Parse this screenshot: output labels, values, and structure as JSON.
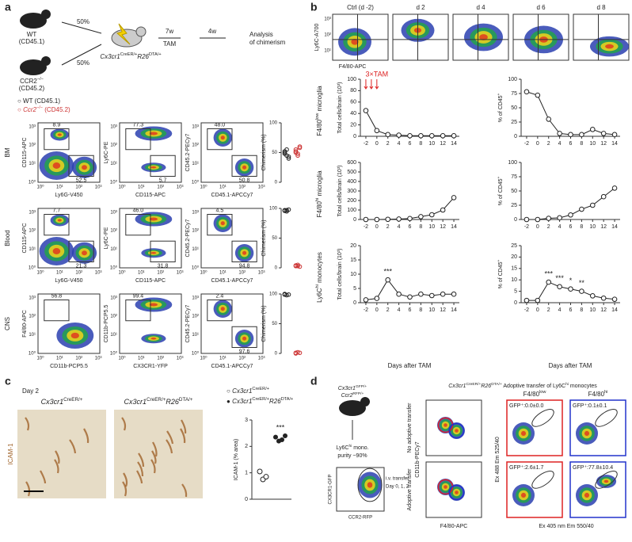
{
  "panel_labels": [
    "a",
    "b",
    "c",
    "d"
  ],
  "a": {
    "mice": [
      [
        {
          "t": "WT"
        }
      ],
      [
        {
          "t": "(CD45.1)"
        }
      ],
      [
        {
          "t": "CCR2"
        },
        {
          "t": "−/−",
          "sup": true
        }
      ],
      [
        {
          "t": "(CD45.2)"
        }
      ]
    ],
    "split": [
      "50%",
      "50%"
    ],
    "steps": [
      "7w",
      "TAM",
      "4w",
      "Analysis",
      "of chimerism"
    ],
    "recipient": [
      {
        "t": "Cx3cr1",
        "i": true
      },
      {
        "t": "CreER/+",
        "sup": true
      },
      {
        "t": "R26",
        "i": true
      },
      {
        "t": "DTA/+",
        "sup": true
      }
    ],
    "legend": [
      [
        {
          "t": "○ WT (CD45.1)"
        }
      ],
      [
        {
          "t": "○ "
        },
        {
          "t": "Ccr2",
          "i": true
        },
        {
          "t": "−/−",
          "sup": true
        },
        {
          "t": " (CD45.2)"
        }
      ]
    ],
    "flow_ticks": [
      "10⁰",
      "10¹",
      "10²",
      "10³"
    ],
    "chim_label": "Chimerism (%)",
    "chim_ylim": [
      0,
      100
    ],
    "chim_yticks": [
      0,
      50,
      100
    ],
    "rows": [
      {
        "tissue": "BM",
        "plots": [
          {
            "x": "Ly6G-V450",
            "y": "CD115-APC",
            "gates": [
              "8.9",
              "52.5"
            ]
          },
          {
            "x": "CD115-APC",
            "y": "Ly6C-PE",
            "gates": [
              "77.3",
              "5.7"
            ]
          },
          {
            "x": "CD45.1-APCCy7",
            "y": "CD45.2-PECy7",
            "gates": [
              "48.0",
              "50.8"
            ]
          }
        ],
        "wt": [
          52,
          45,
          40,
          48,
          55,
          43,
          50
        ],
        "ccr2": [
          55,
          48,
          60,
          52,
          45,
          58,
          50
        ]
      },
      {
        "tissue": "Blood",
        "plots": [
          {
            "x": "Ly6G-V450",
            "y": "CD115-APC",
            "gates": [
              "7.7",
              "21.3"
            ]
          },
          {
            "x": "CD115-APC",
            "y": "Ly6C-PE",
            "gates": [
              "46.0",
              "31.8"
            ]
          },
          {
            "x": "CD45.1-APCCy7",
            "y": "CD45.2-PECy7",
            "gates": [
              "4.5",
              "94.8"
            ]
          }
        ],
        "wt": [
          97,
          95,
          98,
          96,
          97
        ],
        "ccr2": [
          3,
          5,
          2,
          4,
          3
        ]
      },
      {
        "tissue": "CNS",
        "plots": [
          {
            "x": "CD11b-PCP5.5",
            "y": "F4/80-APC",
            "gates": [
              "56.8"
            ]
          },
          {
            "x": "CX3CR1-YFP",
            "y": "CD11b-PCP5.5",
            "gates": [
              "99.4"
            ]
          },
          {
            "x": "CD45.1-APCCy7",
            "y": "CD45.2-PECy7",
            "gates": [
              "2.4",
              "97.6"
            ]
          }
        ],
        "wt": [
          99,
          98,
          99,
          100
        ],
        "ccr2": [
          1,
          2,
          1,
          0
        ]
      }
    ]
  },
  "b": {
    "top_labels": [
      "Ctrl (d -2)",
      "d 2",
      "d 4",
      "d 6",
      "d 8"
    ],
    "top_y": "Ly6C-A700",
    "top_x": "F4/80-APC",
    "top_ticks": [
      "10³",
      "10²",
      "10¹"
    ],
    "rows": [
      [
        {
          "t": "F4/80"
        },
        {
          "t": "low",
          "sup": true
        },
        {
          "t": " microglia"
        }
      ],
      [
        {
          "t": "F4/80"
        },
        {
          "t": "hi",
          "sup": true
        },
        {
          "t": " microglia"
        }
      ],
      [
        {
          "t": "Ly6C"
        },
        {
          "t": "hi",
          "sup": true
        },
        {
          "t": " monocytes"
        }
      ]
    ],
    "tam": "3×TAM",
    "x_label": "Days after TAM",
    "days": [
      -2,
      0,
      2,
      4,
      6,
      8,
      10,
      12,
      14
    ],
    "xlim": [
      -3,
      15
    ],
    "xticks": [
      -2,
      0,
      2,
      4,
      6,
      8,
      10,
      12,
      14
    ],
    "plots": [
      {
        "ylabel": [
          {
            "t": "Total cells/brain (10³)"
          }
        ],
        "ylim": [
          0,
          100
        ],
        "yticks": [
          0,
          20,
          40,
          60,
          80,
          100
        ],
        "mean": [
          45,
          10,
          3,
          2,
          1,
          1,
          1,
          1,
          1
        ],
        "stars": []
      },
      {
        "ylabel": [
          {
            "t": "% of CD45"
          },
          {
            "t": "+",
            "sup": true
          }
        ],
        "ylim": [
          0,
          100
        ],
        "yticks": [
          0,
          25,
          50,
          75,
          100
        ],
        "mean": [
          78,
          72,
          30,
          5,
          3,
          3,
          12,
          5,
          3
        ],
        "stars": []
      },
      {
        "ylabel": [
          {
            "t": "Total cells/brain (10³)"
          }
        ],
        "ylim": [
          0,
          600
        ],
        "yticks": [
          0,
          100,
          200,
          300,
          400,
          500,
          600
        ],
        "mean": [
          0,
          0,
          2,
          5,
          10,
          30,
          50,
          100,
          230
        ],
        "stars": []
      },
      {
        "ylabel": [
          {
            "t": "% of CD45"
          },
          {
            "t": "+",
            "sup": true
          }
        ],
        "ylim": [
          0,
          100
        ],
        "yticks": [
          0,
          25,
          50,
          75,
          100
        ],
        "mean": [
          0,
          0,
          2,
          3,
          8,
          18,
          25,
          40,
          55
        ],
        "stars": []
      },
      {
        "ylabel": [
          {
            "t": "Total cells/brain (10³)"
          }
        ],
        "ylim": [
          0,
          20
        ],
        "yticks": [
          0,
          5,
          10,
          15,
          20
        ],
        "mean": [
          1,
          1.5,
          8,
          3,
          2,
          3,
          2.5,
          3,
          3
        ],
        "stars": [
          {
            "label": "***",
            "day": 2
          }
        ]
      },
      {
        "ylabel": [
          {
            "t": "% of CD45"
          },
          {
            "t": "+",
            "sup": true
          }
        ],
        "ylim": [
          0,
          25
        ],
        "yticks": [
          0,
          5,
          10,
          15,
          20,
          25
        ],
        "mean": [
          1,
          1,
          9,
          7,
          6,
          5,
          3,
          2,
          1.5
        ],
        "stars": [
          {
            "label": "***",
            "day": 2
          },
          {
            "label": "***",
            "day": 4
          },
          {
            "label": "*",
            "day": 6
          },
          {
            "label": "**",
            "day": 8
          }
        ]
      }
    ]
  },
  "c": {
    "day": "Day 2",
    "titles": [
      [
        {
          "t": "Cx3cr1",
          "i": true
        },
        {
          "t": "CreER/+",
          "sup": true
        }
      ],
      [
        {
          "t": "Cx3cr1",
          "i": true
        },
        {
          "t": "CreER/+",
          "sup": true
        },
        {
          "t": "R26",
          "i": true
        },
        {
          "t": "DTA/+",
          "sup": true
        }
      ]
    ],
    "stain": "ICAM-1",
    "legend": [
      [
        {
          "t": "○ "
        },
        {
          "t": "Cx3cr1",
          "i": true
        },
        {
          "t": "CreER/+",
          "sup": true
        }
      ],
      [
        {
          "t": "● "
        },
        {
          "t": "Cx3cr1",
          "i": true
        },
        {
          "t": "CreER/+",
          "sup": true
        },
        {
          "t": "R26",
          "i": true
        },
        {
          "t": "DTA/+",
          "sup": true
        }
      ]
    ],
    "ylabel": "ICAM-1 (% area)",
    "ylim": [
      0,
      3
    ],
    "yticks": [
      0,
      1,
      2,
      3
    ],
    "ctrl": [
      1.05,
      0.75,
      0.85
    ],
    "dta": [
      2.35,
      2.2,
      2.25,
      2.4
    ],
    "star": "***"
  },
  "d": {
    "donor": [
      [
        {
          "t": "Cx3cr1",
          "i": true
        },
        {
          "t": "GFP/+",
          "sup": true
        }
      ],
      [
        {
          "t": "Ccr2",
          "i": true
        },
        {
          "t": "RFP/+",
          "sup": true
        }
      ]
    ],
    "purity": [
      [
        {
          "t": "Ly6C"
        },
        {
          "t": "hi",
          "sup": true
        },
        {
          "t": " mono."
        }
      ],
      [
        {
          "t": "purity ~90%"
        }
      ]
    ],
    "transfer": [
      "i.v. transfer",
      "Day 0, 1, 2"
    ],
    "inset_y": "CX3CR1-GFP",
    "inset_x": "CCR2-RFP",
    "header": [
      {
        "t": "Cx3cr1",
        "i": true
      },
      {
        "t": "CreER/+",
        "sup": true
      },
      {
        "t": "R26",
        "i": true
      },
      {
        "t": "DTA/+",
        "sup": true
      },
      {
        "t": " Adoptive transfer of Ly6C"
      },
      {
        "t": "hi",
        "sup": true
      },
      {
        "t": " monocytes"
      }
    ],
    "cols": [
      [
        {
          "t": "F4/80"
        },
        {
          "t": "low",
          "sup": true
        }
      ],
      [
        {
          "t": "F4/80"
        },
        {
          "t": "hi",
          "sup": true
        }
      ]
    ],
    "rows": [
      "No adoptive transfer",
      "Adoptive transfer"
    ],
    "ax1_y": "CD11b-PECy7",
    "ax1_x": "F4/80-APC",
    "ax2_y": "Ex 488 Em 525/40",
    "ax2_x": "Ex 405 nm Em 550/40",
    "gates": [
      [
        "GFP⁺:0.0±0.0",
        "GFP⁺:0.1±0.1"
      ],
      [
        "GFP⁺:2.6±1.7",
        "GFP⁺:77.8±10.4"
      ]
    ]
  }
}
